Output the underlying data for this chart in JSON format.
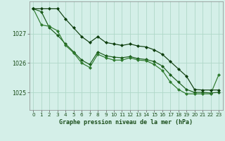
{
  "bg_color": "#d4efe8",
  "grid_color": "#b0d8c8",
  "xlabel": "Graphe pression niveau de la mer (hPa)",
  "ylim": [
    1024.4,
    1028.1
  ],
  "xlim": [
    -0.5,
    23.5
  ],
  "yticks": [
    1025,
    1026,
    1027
  ],
  "xticks": [
    0,
    1,
    2,
    3,
    4,
    5,
    6,
    7,
    8,
    9,
    10,
    11,
    12,
    13,
    14,
    15,
    16,
    17,
    18,
    19,
    20,
    21,
    22,
    23
  ],
  "line_color1": "#1a5c1a",
  "line_color2": "#2d7a2d",
  "line_color3": "#0d3d0d",
  "series1": [
    1027.85,
    1027.75,
    1027.2,
    1026.95,
    1026.65,
    1026.38,
    1026.1,
    1025.95,
    1026.38,
    1026.25,
    1026.2,
    1026.18,
    1026.22,
    1026.15,
    1026.12,
    1026.05,
    1025.9,
    1025.6,
    1025.35,
    1025.1,
    1025.0,
    1025.0,
    1024.98,
    1025.0
  ],
  "series2": [
    1027.85,
    1027.3,
    1027.25,
    1027.1,
    1026.6,
    1026.35,
    1026.0,
    1025.85,
    1026.3,
    1026.18,
    1026.1,
    1026.1,
    1026.18,
    1026.1,
    1026.08,
    1025.95,
    1025.75,
    1025.35,
    1025.1,
    1024.95,
    1024.95,
    1024.95,
    1024.95,
    1025.6
  ],
  "series3": [
    1027.85,
    1027.85,
    1027.85,
    1027.85,
    1027.5,
    1027.2,
    1026.9,
    1026.7,
    1026.9,
    1026.7,
    1026.65,
    1026.6,
    1026.65,
    1026.58,
    1026.55,
    1026.45,
    1026.3,
    1026.05,
    1025.8,
    1025.55,
    1025.1,
    1025.08,
    1025.08,
    1025.08
  ]
}
